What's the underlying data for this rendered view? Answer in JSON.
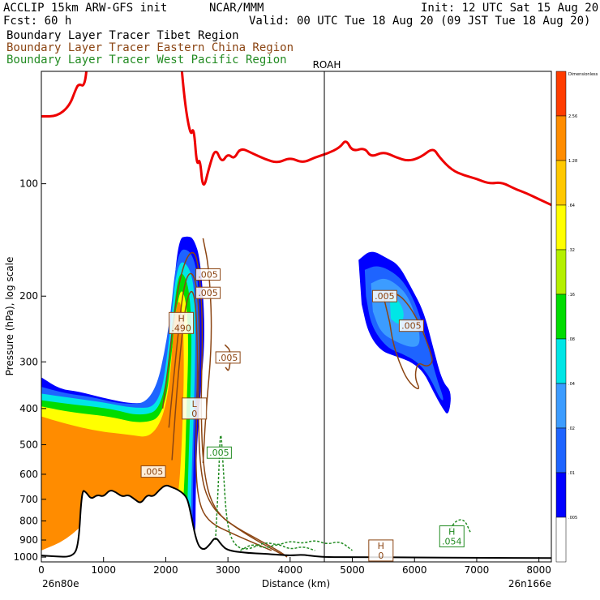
{
  "header": {
    "left1": "ACCLIP 15km ARW-GFS init",
    "center1": "NCAR/MMM",
    "right1": "Init: 12 UTC Sat 15 Aug 20",
    "left2": "Fcst:   60 h",
    "right2": "Valid: 00 UTC Tue 18 Aug 20 (09 JST Tue 18 Aug 20)"
  },
  "legend": [
    {
      "label": "Boundary Layer Tracer  Tibet Region",
      "color": "#000000"
    },
    {
      "label": "Boundary Layer Tracer  Eastern China Region",
      "color": "#8b4513"
    },
    {
      "label": "Boundary Layer Tracer  West Pacific Region",
      "color": "#228b22"
    }
  ],
  "colors": {
    "tropopause": "#ee0000",
    "terrain": "#000000",
    "china": "#8b4513",
    "pacific": "#228b22"
  },
  "chart_data": {
    "type": "heatmap",
    "xlabel": "Distance (km)",
    "ylabel": "Pressure (hPa), log scale",
    "x_ticks": [
      0,
      1000,
      2000,
      3000,
      4000,
      5000,
      6000,
      7000,
      8000
    ],
    "x_tick_labels": [
      "0",
      "1000",
      "2000",
      "3000",
      "4000",
      "5000",
      "6000",
      "7000",
      "8000"
    ],
    "y_ticks": [
      100,
      200,
      300,
      400,
      500,
      600,
      700,
      800,
      900,
      1000
    ],
    "y_tick_labels": [
      "100",
      "200",
      "300",
      "400",
      "500",
      "600",
      "700",
      "800",
      "900",
      "1000"
    ],
    "xlim": [
      0,
      8200
    ],
    "ylim": [
      1030,
      50
    ],
    "y_scale": "log",
    "start_label": "26n80e",
    "end_label": "26n166e",
    "station": {
      "name": "ROAH",
      "x": 4550
    },
    "colorbar": {
      "title": "Dimensionless",
      "labels": [
        ".005",
        ".01",
        ".02",
        ".04",
        ".08",
        ".16",
        ".32",
        ".64",
        "1.28",
        "2.56"
      ],
      "colors": [
        "#ffffff",
        "#0000ff",
        "#1e64ff",
        "#3c9cff",
        "#00e6e6",
        "#00dc00",
        "#b4f000",
        "#ffff00",
        "#ffc800",
        "#ff8c00",
        "#ff3c00"
      ]
    },
    "contour_labels": [
      {
        "text": ".005",
        "x": 2680,
        "p": 175,
        "color": "china"
      },
      {
        "text": ".005",
        "x": 2680,
        "p": 196,
        "color": "china"
      },
      {
        "text": ".005",
        "x": 3000,
        "p": 292,
        "color": "china"
      },
      {
        "text": ".005",
        "x": 1800,
        "p": 590,
        "color": "china"
      },
      {
        "text": ".005",
        "x": 5520,
        "p": 200,
        "color": "china"
      },
      {
        "text": ".005",
        "x": 5950,
        "p": 240,
        "color": "china"
      },
      {
        "text": ".005",
        "x": 2860,
        "p": 525,
        "color": "pacific"
      }
    ],
    "extrema": [
      {
        "letter": "H",
        "value": ".490",
        "x": 2250,
        "p": 236,
        "color": "china"
      },
      {
        "letter": "L",
        "value": "0",
        "x": 2460,
        "p": 400,
        "color": "china"
      },
      {
        "letter": "H",
        "value": "0",
        "x": 5460,
        "p": 960,
        "color": "china"
      },
      {
        "letter": "H",
        "value": ".054",
        "x": 6600,
        "p": 880,
        "color": "pacific"
      }
    ]
  }
}
